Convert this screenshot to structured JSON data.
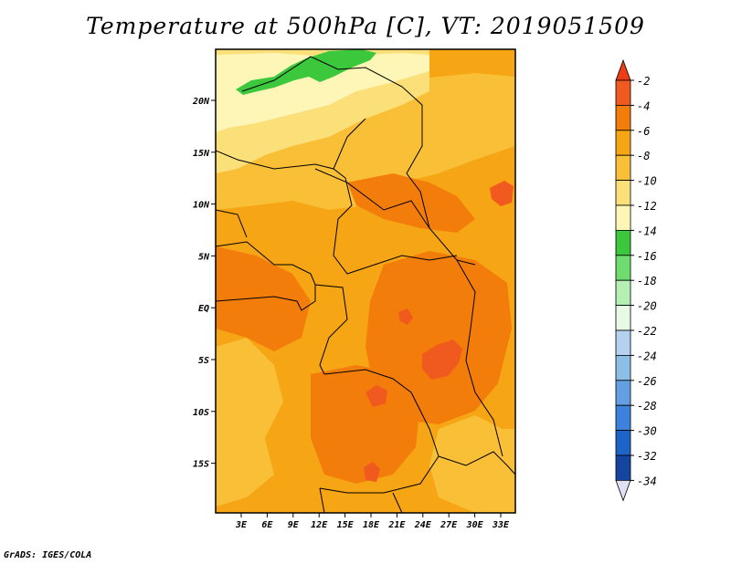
{
  "title": "Temperature at 500hPa [C], VT: 2019051509",
  "footer": "GrADS: IGES/COLA",
  "map": {
    "variable": "Temperature",
    "level": "500hPa",
    "units": "C",
    "valid_time": "2019051509",
    "lat_labels": [
      "20N",
      "15N",
      "10N",
      "5N",
      "EQ",
      "5S",
      "10S",
      "15S"
    ],
    "lon_labels": [
      "3E",
      "6E",
      "9E",
      "12E",
      "15E",
      "18E",
      "21E",
      "24E",
      "27E",
      "30E",
      "33E"
    ]
  },
  "colorbar": {
    "labels": [
      "-2",
      "-4",
      "-6",
      "-8",
      "-10",
      "-12",
      "-14",
      "-16",
      "-18",
      "-20",
      "-22",
      "-24",
      "-26",
      "-28",
      "-30",
      "-32",
      "-34"
    ],
    "colors": [
      "#f05a1e",
      "#f37d0a",
      "#f6a514",
      "#f8bf37",
      "#fbdf78",
      "#fdf6b6",
      "#3cc83c",
      "#6fdc6f",
      "#b4f0b4",
      "#e6fae6",
      "#b4d2f0",
      "#8cbee6",
      "#64a0e1",
      "#3c82dc",
      "#1e64c8",
      "#1446a0",
      "#0f0f78"
    ],
    "top_arrow_color": "#ee3c14",
    "bottom_arrow_color": "#e1e1f5"
  }
}
